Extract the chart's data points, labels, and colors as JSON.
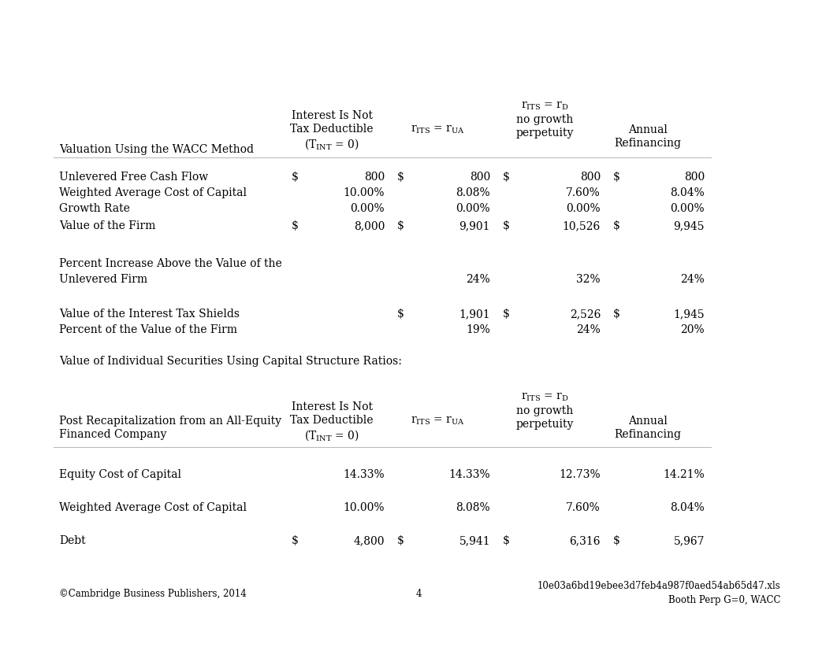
{
  "bg_color": "#ffffff",
  "font_family": "DejaVu Serif",
  "body_fontsize": 10.0,
  "small_fontsize": 8.5,
  "footer_copyright": "©Cambridge Business Publishers, 2014",
  "footer_page": "4",
  "footer_filename": "10e03a6bd19ebee3d7feb4a987f0aed54ab65d47.xls",
  "footer_sheet": "Booth Perp G=0, WACC"
}
